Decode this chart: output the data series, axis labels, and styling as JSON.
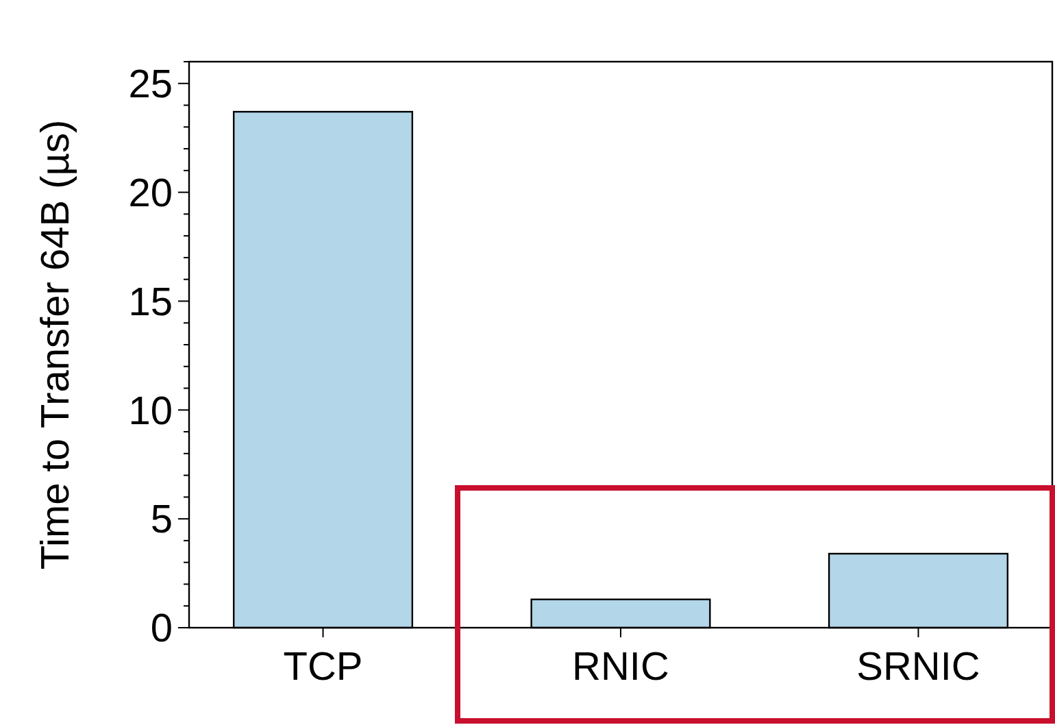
{
  "chart_data": {
    "type": "bar",
    "ylabel": "Time to Transfer 64B (µs)",
    "categories": [
      "TCP",
      "RNIC",
      "SRNIC"
    ],
    "values": [
      23.7,
      1.3,
      3.4
    ],
    "color": "#b3d6e8",
    "ylim": [
      0,
      26
    ],
    "yticks": [
      0,
      {
        "value": 1,
        "label": null
      },
      {
        "value": 2,
        "label": null
      },
      {
        "value": 3,
        "label": null
      },
      {
        "value": 4,
        "label": null
      },
      5,
      {
        "value": 6,
        "label": null
      },
      {
        "value": 7,
        "label": null
      },
      {
        "value": 8,
        "label": null
      },
      {
        "value": 9,
        "label": null
      },
      10,
      {
        "value": 11,
        "label": null
      },
      {
        "value": 12,
        "label": null
      },
      {
        "value": 13,
        "label": null
      },
      {
        "value": 14,
        "label": null
      },
      15,
      {
        "value": 16,
        "label": null
      },
      {
        "value": 17,
        "label": null
      },
      {
        "value": 18,
        "label": null
      },
      {
        "value": 19,
        "label": null
      },
      20,
      {
        "value": 21,
        "label": null
      },
      {
        "value": 22,
        "label": null
      },
      {
        "value": 23,
        "label": null
      },
      {
        "value": 24,
        "label": null
      },
      25,
      {
        "value": 26,
        "label": null
      }
    ],
    "grid": false
  }
}
